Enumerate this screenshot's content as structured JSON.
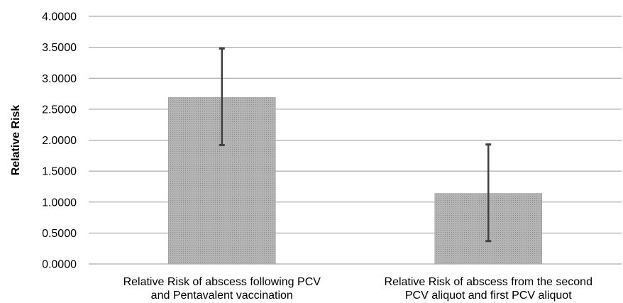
{
  "chart_data": {
    "type": "bar",
    "title": "",
    "xlabel": "",
    "ylabel": "Relative Risk",
    "ylim": [
      0,
      4
    ],
    "yticks": [
      "0.0000",
      "0.5000",
      "1.0000",
      "1.5000",
      "2.0000",
      "2.5000",
      "3.0000",
      "3.5000",
      "4.0000"
    ],
    "grid": true,
    "legend": "none",
    "bar_color": "#a8a8a8",
    "error_bar_color": "#404040",
    "categories": [
      [
        "Relative Risk of abscess following PCV",
        "and Pentavalent vaccination"
      ],
      [
        "Relative Risk of abscess from the second",
        "PCV aliquot and first PCV aliquot"
      ]
    ],
    "values": [
      2.69,
      1.14
    ],
    "error_low": [
      1.92,
      0.37
    ],
    "error_high": [
      3.48,
      1.93
    ]
  }
}
